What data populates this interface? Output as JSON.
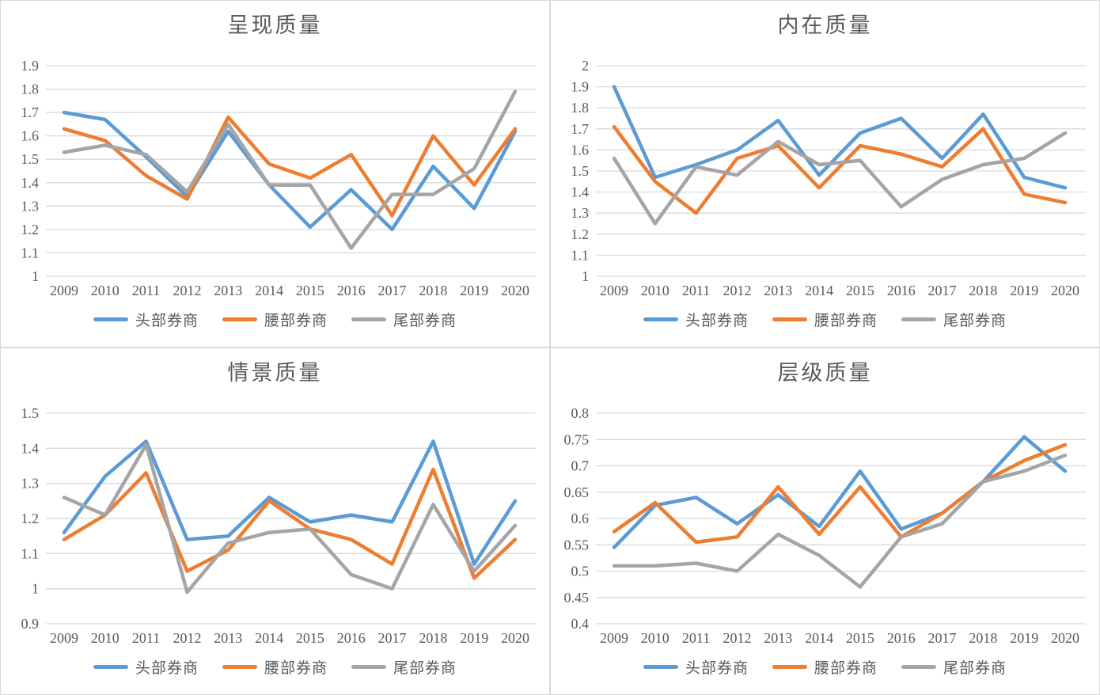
{
  "page": {
    "background": "#ffffff",
    "panel_border_color": "#d9d9d9",
    "gridline_color": "#d9d9d9",
    "text_color": "#595959"
  },
  "chart_data": [
    {
      "type": "line",
      "title": "呈现质量",
      "categories": [
        "2009",
        "2010",
        "2011",
        "2012",
        "2013",
        "2014",
        "2015",
        "2016",
        "2017",
        "2018",
        "2019",
        "2020"
      ],
      "ylim": [
        1,
        1.9
      ],
      "ytick_values": [
        1.9,
        1.8,
        1.7,
        1.6,
        1.5,
        1.4,
        1.3,
        1.2,
        1.1,
        1
      ],
      "ytick_labels": [
        "1.9",
        "1.8",
        "1.7",
        "1.6",
        "1.5",
        "1.4",
        "1.3",
        "1.2",
        "1.1",
        "1"
      ],
      "grid": true,
      "legend_position": "bottom",
      "series": [
        {
          "name": "头部券商",
          "color": "#5B9BD5",
          "values": [
            1.7,
            1.67,
            1.51,
            1.34,
            1.62,
            1.39,
            1.21,
            1.37,
            1.2,
            1.47,
            1.29,
            1.62
          ]
        },
        {
          "name": "腰部券商",
          "color": "#ED7D31",
          "values": [
            1.63,
            1.58,
            1.43,
            1.33,
            1.68,
            1.48,
            1.42,
            1.52,
            1.26,
            1.6,
            1.39,
            1.63
          ]
        },
        {
          "name": "尾部券商",
          "color": "#A5A5A5",
          "values": [
            1.53,
            1.56,
            1.52,
            1.36,
            1.65,
            1.39,
            1.39,
            1.12,
            1.35,
            1.35,
            1.46,
            1.79
          ]
        }
      ]
    },
    {
      "type": "line",
      "title": "内在质量",
      "categories": [
        "2009",
        "2010",
        "2011",
        "2012",
        "2013",
        "2014",
        "2015",
        "2016",
        "2017",
        "2018",
        "2019",
        "2020"
      ],
      "ylim": [
        1,
        2
      ],
      "ytick_values": [
        2,
        1.9,
        1.8,
        1.7,
        1.6,
        1.5,
        1.4,
        1.3,
        1.2,
        1.1,
        1
      ],
      "ytick_labels": [
        "2",
        "1.9",
        "1.8",
        "1.7",
        "1.6",
        "1.5",
        "1.4",
        "1.3",
        "1.2",
        "1.1",
        "1"
      ],
      "grid": true,
      "legend_position": "bottom",
      "series": [
        {
          "name": "头部券商",
          "color": "#5B9BD5",
          "values": [
            1.9,
            1.47,
            1.53,
            1.6,
            1.74,
            1.48,
            1.68,
            1.75,
            1.56,
            1.77,
            1.47,
            1.42
          ]
        },
        {
          "name": "腰部券商",
          "color": "#ED7D31",
          "values": [
            1.71,
            1.45,
            1.3,
            1.56,
            1.62,
            1.42,
            1.62,
            1.58,
            1.52,
            1.7,
            1.39,
            1.35
          ]
        },
        {
          "name": "尾部券商",
          "color": "#A5A5A5",
          "values": [
            1.56,
            1.25,
            1.52,
            1.48,
            1.64,
            1.53,
            1.55,
            1.33,
            1.46,
            1.53,
            1.56,
            1.68
          ]
        }
      ]
    },
    {
      "type": "line",
      "title": "情景质量",
      "categories": [
        "2009",
        "2010",
        "2011",
        "2012",
        "2013",
        "2014",
        "2015",
        "2016",
        "2017",
        "2018",
        "2019",
        "2020"
      ],
      "ylim": [
        0.9,
        1.5
      ],
      "ytick_values": [
        1.5,
        1.4,
        1.3,
        1.2,
        1.1,
        1,
        0.9
      ],
      "ytick_labels": [
        "1.5",
        "1.4",
        "1.3",
        "1.2",
        "1.1",
        "1",
        "0.9"
      ],
      "grid": true,
      "legend_position": "bottom",
      "series": [
        {
          "name": "头部券商",
          "color": "#5B9BD5",
          "values": [
            1.16,
            1.32,
            1.42,
            1.14,
            1.15,
            1.26,
            1.19,
            1.21,
            1.19,
            1.42,
            1.07,
            1.25
          ]
        },
        {
          "name": "腰部券商",
          "color": "#ED7D31",
          "values": [
            1.14,
            1.21,
            1.33,
            1.05,
            1.11,
            1.25,
            1.17,
            1.14,
            1.07,
            1.34,
            1.03,
            1.14
          ]
        },
        {
          "name": "尾部券商",
          "color": "#A5A5A5",
          "values": [
            1.26,
            1.21,
            1.41,
            0.99,
            1.13,
            1.16,
            1.17,
            1.04,
            1.0,
            1.24,
            1.05,
            1.18
          ]
        }
      ]
    },
    {
      "type": "line",
      "title": "层级质量",
      "categories": [
        "2009",
        "2010",
        "2011",
        "2012",
        "2013",
        "2014",
        "2015",
        "2016",
        "2017",
        "2018",
        "2019",
        "2020"
      ],
      "ylim": [
        0.4,
        0.8
      ],
      "ytick_values": [
        0.8,
        0.75,
        0.7,
        0.65,
        0.6,
        0.55,
        0.5,
        0.45,
        0.4
      ],
      "ytick_labels": [
        "0.8",
        "0.75",
        "0.7",
        "0.65",
        "0.6",
        "0.55",
        "0.5",
        "0.45",
        "0.4"
      ],
      "grid": true,
      "legend_position": "bottom",
      "series": [
        {
          "name": "头部券商",
          "color": "#5B9BD5",
          "values": [
            0.545,
            0.625,
            0.64,
            0.59,
            0.645,
            0.585,
            0.69,
            0.58,
            0.61,
            0.67,
            0.755,
            0.69
          ]
        },
        {
          "name": "腰部券商",
          "color": "#ED7D31",
          "values": [
            0.575,
            0.63,
            0.555,
            0.565,
            0.66,
            0.57,
            0.66,
            0.565,
            0.61,
            0.67,
            0.71,
            0.74
          ]
        },
        {
          "name": "尾部券商",
          "color": "#A5A5A5",
          "values": [
            0.51,
            0.51,
            0.515,
            0.5,
            0.57,
            0.53,
            0.47,
            0.565,
            0.59,
            0.67,
            0.69,
            0.72
          ]
        }
      ]
    }
  ]
}
